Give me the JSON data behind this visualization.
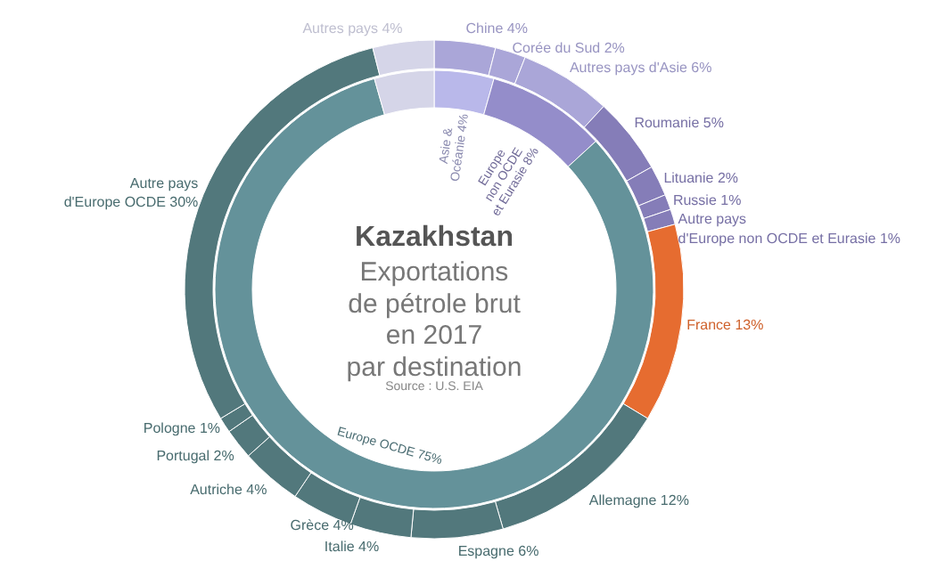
{
  "chart_data": [
    {
      "type": "donut",
      "title": "Kazakhstan",
      "subtitle": "Exportations\nde pétrole brut\nen 2017\npar destination",
      "annotations": [
        "Source : U.S. EIA"
      ],
      "categories": [
        "Chine",
        "Corée du Sud",
        "Autres pays d'Asie",
        "Roumanie",
        "Lituanie",
        "Russie",
        "Autre pays\nd'Europe non OCDE et Eurasie",
        "France",
        "Allemagne",
        "Espagne",
        "Italie",
        "Grèce",
        "Autriche",
        "Portugal",
        "Pologne",
        "Autre pays\nd'Europe OCDE",
        "Autres pays"
      ],
      "values": [
        4,
        2,
        6,
        5,
        2,
        1,
        1,
        13,
        12,
        6,
        4,
        4,
        4,
        2,
        1,
        30,
        4
      ],
      "value_labels": [
        "4%",
        "2%",
        "6%",
        "5%",
        "2%",
        "1%",
        "1%",
        "13%",
        "12%",
        "6%",
        "4%",
        "4%",
        "4%",
        "2%",
        "1%",
        "30%",
        "4%"
      ],
      "colors": [
        "#aaa6d8",
        "#aaa6d8",
        "#aaa6d8",
        "#857db8",
        "#857db8",
        "#857db8",
        "#857db8",
        "#e66c30",
        "#52787c",
        "#52787c",
        "#52787c",
        "#52787c",
        "#52787c",
        "#52787c",
        "#52787c",
        "#52787c",
        "#d5d5e8"
      ]
    },
    {
      "type": "donut",
      "categories": [
        "Asie &\nOcéanie",
        "Europe\nnon OCDE\net Eurasie",
        "Europe OCDE",
        null
      ],
      "values": [
        4,
        8,
        75,
        4
      ],
      "value_labels": [
        "4%",
        "8%",
        "75%",
        null
      ],
      "colors": [
        "#b9b8ea",
        "#948dca",
        "#64929a",
        "#d5d5e8"
      ]
    }
  ]
}
